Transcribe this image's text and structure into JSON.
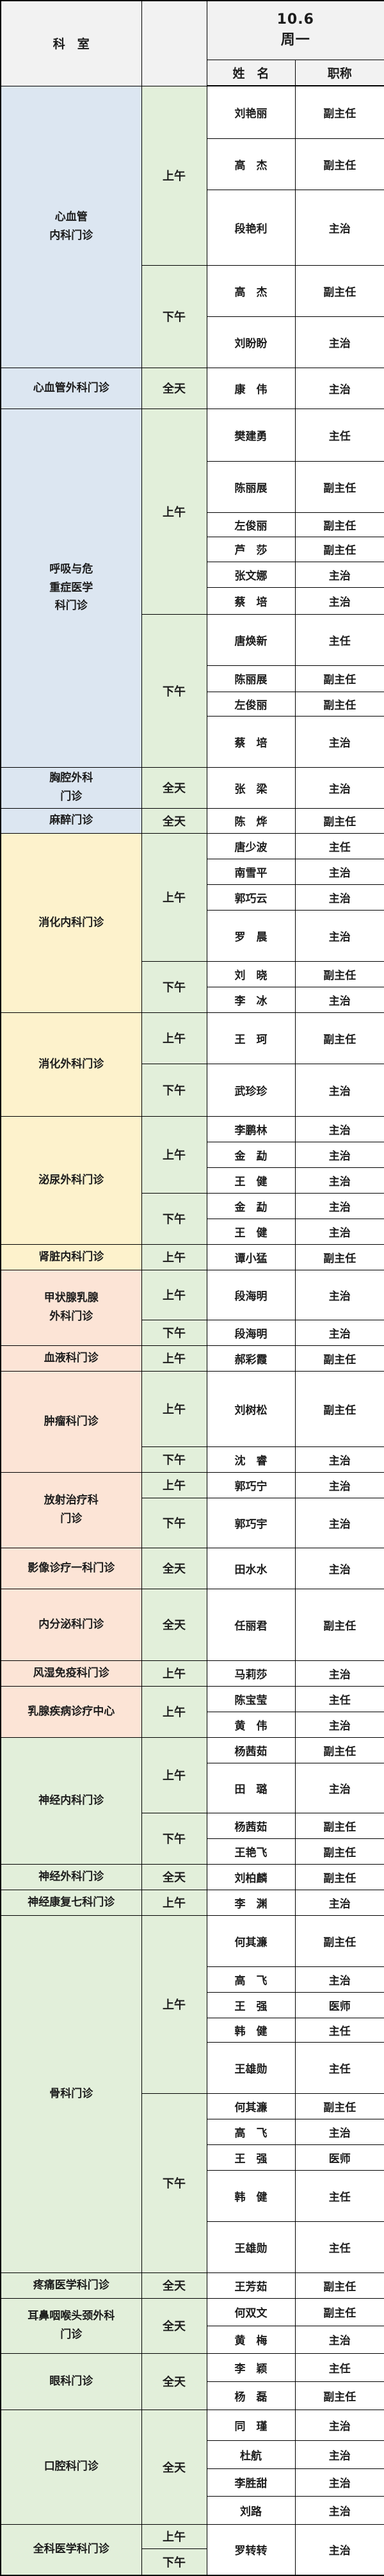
{
  "header": {
    "department": "科　室",
    "date": "10.6",
    "weekday": "周一",
    "name": "姓　名",
    "title": "职称"
  },
  "colors": {
    "header_bg": "#f2f2f2",
    "time_bg": "#e2efda",
    "cell_bg": "#ffffff",
    "border": "#000000",
    "blue": "#dce6f1",
    "yellow": "#fdf2cc",
    "pink": "#fce4d6",
    "green": "#e2efda"
  },
  "session_labels": {
    "morning": "上午",
    "afternoon": "下午",
    "all_day": "全天"
  },
  "title_values": [
    "主任",
    "副主任",
    "主治",
    "医师"
  ],
  "departments": [
    {
      "name_lines": [
        "心血管",
        "内科门诊"
      ],
      "color": "blue",
      "sessions": [
        {
          "time": "上午",
          "staff": [
            {
              "name": "刘艳丽",
              "title": "副主任",
              "h": 82
            },
            {
              "name": "高　杰",
              "title": "副主任",
              "h": 80
            },
            {
              "name": "段艳利",
              "title": "主治",
              "h": 118
            }
          ]
        },
        {
          "time": "下午",
          "staff": [
            {
              "name": "高　杰",
              "title": "副主任",
              "h": 80
            },
            {
              "name": "刘盼盼",
              "title": "主治",
              "h": 80
            }
          ]
        }
      ]
    },
    {
      "name_lines": [
        "心血管外科门诊"
      ],
      "color": "blue",
      "sessions": [
        {
          "time": "全天",
          "staff": [
            {
              "name": "康　伟",
              "title": "主治",
              "h": 64
            }
          ]
        }
      ]
    },
    {
      "name_lines": [
        "呼吸与危",
        "重症医学",
        "科门诊"
      ],
      "color": "blue",
      "sessions": [
        {
          "time": "上午",
          "staff": [
            {
              "name": "樊建勇",
              "title": "主任",
              "h": 82
            },
            {
              "name": "陈丽展",
              "title": "副主任",
              "h": 80
            },
            {
              "name": "左俊丽",
              "title": "副主任",
              "h": 38
            },
            {
              "name": "芦　莎",
              "title": "副主任",
              "h": 39
            },
            {
              "name": "张文娜",
              "title": "主治",
              "h": 40
            },
            {
              "name": "蔡　培",
              "title": "主治",
              "h": 42
            }
          ]
        },
        {
          "time": "下午",
          "staff": [
            {
              "name": "唐焕新",
              "title": "主任",
              "h": 80
            },
            {
              "name": "陈丽展",
              "title": "副主任",
              "h": 41
            },
            {
              "name": "左俊丽",
              "title": "副主任",
              "h": 38
            },
            {
              "name": "蔡　培",
              "title": "主治",
              "h": 80
            }
          ]
        }
      ]
    },
    {
      "name_lines": [
        "胸腔外科",
        "门诊"
      ],
      "color": "blue",
      "sessions": [
        {
          "time": "全天",
          "staff": [
            {
              "name": "张　梁",
              "title": "主治",
              "h": 64
            }
          ]
        }
      ]
    },
    {
      "name_lines": [
        "麻醉门诊"
      ],
      "color": "blue",
      "sessions": [
        {
          "time": "全天",
          "staff": [
            {
              "name": "陈　烨",
              "title": "副主任",
              "h": 39
            }
          ]
        }
      ]
    },
    {
      "name_lines": [
        "消化内科门诊"
      ],
      "color": "yellow",
      "sessions": [
        {
          "time": "上午",
          "staff": [
            {
              "name": "唐少波",
              "title": "主任",
              "h": 40
            },
            {
              "name": "南雪平",
              "title": "主治",
              "h": 40
            },
            {
              "name": "郭巧云",
              "title": "主治",
              "h": 40
            },
            {
              "name": "罗　晨",
              "title": "主治",
              "h": 80
            }
          ]
        },
        {
          "time": "下午",
          "staff": [
            {
              "name": "刘　晓",
              "title": "副主任",
              "h": 40
            },
            {
              "name": "李　冰",
              "title": "主治",
              "h": 40
            }
          ]
        }
      ]
    },
    {
      "name_lines": [
        "消化外科门诊"
      ],
      "color": "yellow",
      "sessions": [
        {
          "time": "上午",
          "staff": [
            {
              "name": "王　珂",
              "title": "副主任",
              "h": 80
            }
          ]
        },
        {
          "time": "下午",
          "staff": [
            {
              "name": "武珍珍",
              "title": "主治",
              "h": 82
            }
          ]
        }
      ]
    },
    {
      "name_lines": [
        "泌尿外科门诊"
      ],
      "color": "yellow",
      "sessions": [
        {
          "time": "上午",
          "staff": [
            {
              "name": "李鹏林",
              "title": "主治",
              "h": 40
            },
            {
              "name": "金　勐",
              "title": "主治",
              "h": 40
            },
            {
              "name": "王　健",
              "title": "主治",
              "h": 40
            }
          ]
        },
        {
          "time": "下午",
          "staff": [
            {
              "name": "金　勐",
              "title": "主治",
              "h": 40
            },
            {
              "name": "王　健",
              "title": "主治",
              "h": 40
            }
          ]
        }
      ]
    },
    {
      "name_lines": [
        "肾脏内科门诊"
      ],
      "color": "yellow",
      "sessions": [
        {
          "time": "上午",
          "staff": [
            {
              "name": "谭小猛",
              "title": "副主任",
              "h": 40
            }
          ]
        }
      ]
    },
    {
      "name_lines": [
        "甲状腺乳腺",
        "外科门诊"
      ],
      "color": "pink",
      "sessions": [
        {
          "time": "上午",
          "staff": [
            {
              "name": "段海明",
              "title": "主治",
              "h": 78
            }
          ]
        },
        {
          "time": "下午",
          "staff": [
            {
              "name": "段海明",
              "title": "主治",
              "h": 40
            }
          ]
        }
      ]
    },
    {
      "name_lines": [
        "血液科门诊"
      ],
      "color": "pink",
      "sessions": [
        {
          "time": "上午",
          "staff": [
            {
              "name": "郝彩霞",
              "title": "副主任",
              "h": 40
            }
          ]
        }
      ]
    },
    {
      "name_lines": [
        "肿瘤科门诊"
      ],
      "color": "pink",
      "sessions": [
        {
          "time": "上午",
          "staff": [
            {
              "name": "刘树松",
              "title": "副主任",
              "h": 118
            }
          ]
        },
        {
          "time": "下午",
          "staff": [
            {
              "name": "沈　睿",
              "title": "主治",
              "h": 40
            }
          ]
        }
      ]
    },
    {
      "name_lines": [
        "放射治疗科",
        "门诊"
      ],
      "color": "pink",
      "sessions": [
        {
          "time": "上午",
          "staff": [
            {
              "name": "郭巧宁",
              "title": "主治",
              "h": 40
            }
          ]
        },
        {
          "time": "下午",
          "staff": [
            {
              "name": "郭巧宇",
              "title": "主治",
              "h": 78
            }
          ]
        }
      ]
    },
    {
      "name_lines": [
        "影像诊疗一科门诊"
      ],
      "color": "pink",
      "sessions": [
        {
          "time": "全天",
          "staff": [
            {
              "name": "田水水",
              "title": "主治",
              "h": 64
            }
          ]
        }
      ]
    },
    {
      "name_lines": [
        "内分泌科门诊"
      ],
      "color": "pink",
      "sessions": [
        {
          "time": "全天",
          "staff": [
            {
              "name": "任丽君",
              "title": "副主任",
              "h": 112
            }
          ]
        }
      ]
    },
    {
      "name_lines": [
        "风湿免疫科门诊"
      ],
      "color": "pink",
      "sessions": [
        {
          "time": "上午",
          "staff": [
            {
              "name": "马莉莎",
              "title": "主治",
              "h": 40
            }
          ]
        }
      ]
    },
    {
      "name_lines": [
        "乳腺疾病诊疗中心"
      ],
      "color": "pink",
      "sessions": [
        {
          "time": "上午",
          "staff": [
            {
              "name": "陈宝莹",
              "title": "主任",
              "h": 40
            },
            {
              "name": "黄　伟",
              "title": "主治",
              "h": 40
            }
          ]
        }
      ]
    },
    {
      "name_lines": [
        "神经内科门诊"
      ],
      "color": "green",
      "sessions": [
        {
          "time": "上午",
          "staff": [
            {
              "name": "杨茜茹",
              "title": "副主任",
              "h": 40
            },
            {
              "name": "田　璐",
              "title": "主治",
              "h": 78
            }
          ]
        },
        {
          "time": "下午",
          "staff": [
            {
              "name": "杨茜茹",
              "title": "副主任",
              "h": 40
            },
            {
              "name": "王艳飞",
              "title": "副主任",
              "h": 40
            }
          ]
        }
      ]
    },
    {
      "name_lines": [
        "神经外科门诊"
      ],
      "color": "green",
      "sessions": [
        {
          "time": "全天",
          "staff": [
            {
              "name": "刘柏麟",
              "title": "副主任",
              "h": 40
            }
          ]
        }
      ]
    },
    {
      "name_lines": [
        "神经康复七科门诊"
      ],
      "color": "green",
      "sessions": [
        {
          "time": "上午",
          "staff": [
            {
              "name": "李　渊",
              "title": "主治",
              "h": 40
            }
          ]
        }
      ]
    },
    {
      "name_lines": [
        "骨科门诊"
      ],
      "color": "green",
      "sessions": [
        {
          "time": "上午",
          "staff": [
            {
              "name": "何其濂",
              "title": "副主任",
              "h": 80
            },
            {
              "name": "高　飞",
              "title": "主治",
              "h": 40
            },
            {
              "name": "王　强",
              "title": "医师",
              "h": 40
            },
            {
              "name": "韩　健",
              "title": "主任",
              "h": 38
            },
            {
              "name": "王雄勋",
              "title": "主任",
              "h": 80
            }
          ]
        },
        {
          "time": "下午",
          "staff": [
            {
              "name": "何其濂",
              "title": "副主任",
              "h": 40
            },
            {
              "name": "高　飞",
              "title": "主治",
              "h": 40
            },
            {
              "name": "王　强",
              "title": "医师",
              "h": 40
            },
            {
              "name": "韩　健",
              "title": "主任",
              "h": 80
            },
            {
              "name": "王雄勋",
              "title": "主任",
              "h": 80
            }
          ]
        }
      ]
    },
    {
      "name_lines": [
        "疼痛医学科门诊"
      ],
      "color": "green",
      "sessions": [
        {
          "time": "全天",
          "staff": [
            {
              "name": "王芳茹",
              "title": "副主任",
              "h": 40
            }
          ]
        }
      ]
    },
    {
      "name_lines": [
        "耳鼻咽喉头颈外科",
        "门诊"
      ],
      "color": "green",
      "sessions": [
        {
          "time": "全天",
          "staff": [
            {
              "name": "何双文",
              "title": "副主任",
              "h": 43
            },
            {
              "name": "黄　梅",
              "title": "主治",
              "h": 43
            }
          ]
        }
      ]
    },
    {
      "name_lines": [
        "眼科门诊"
      ],
      "color": "green",
      "sessions": [
        {
          "time": "全天",
          "staff": [
            {
              "name": "李　颖",
              "title": "主任",
              "h": 44
            },
            {
              "name": "杨　磊",
              "title": "副主任",
              "h": 44
            }
          ]
        }
      ]
    },
    {
      "name_lines": [
        "口腔科门诊"
      ],
      "color": "green",
      "sessions": [
        {
          "time": "全天",
          "staff": [
            {
              "name": "同　瑾",
              "title": "主治",
              "h": 48
            },
            {
              "name": "杜航",
              "title": "主治",
              "h": 44
            },
            {
              "name": "李胜甜",
              "title": "主治",
              "h": 43
            },
            {
              "name": "刘路",
              "title": "主治",
              "h": 44
            }
          ]
        }
      ]
    },
    {
      "name_lines": [
        "全科医学科门诊"
      ],
      "color": "green",
      "sessions": [
        {
          "time": "上午",
          "h": 38
        },
        {
          "time": "下午",
          "h": 42
        }
      ],
      "shared_staff": {
        "name": "罗转转",
        "title": "主治"
      }
    }
  ]
}
